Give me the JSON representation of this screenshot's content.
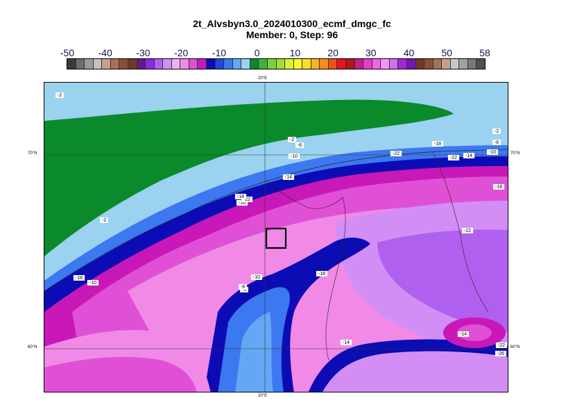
{
  "title": {
    "line1": "2t_Alvsbyn3.0_2024010300_ecmf_dmgc_fc",
    "line2": "Member: 0, Step: 96"
  },
  "colorbar": {
    "tick_labels": [
      "-50",
      "-40",
      "-30",
      "-20",
      "-10",
      "0",
      "10",
      "20",
      "30",
      "40",
      "50",
      "58"
    ],
    "colors": [
      "#3a3a3a",
      "#6e6e6e",
      "#9a9a9a",
      "#c2c2c2",
      "#c8a08a",
      "#a9705a",
      "#8c4e3a",
      "#6e3a24",
      "#5e1a8e",
      "#8a2be2",
      "#b060ee",
      "#d28ef5",
      "#e8b4f5",
      "#f08ae6",
      "#e050d6",
      "#c818b8",
      "#0c0cb4",
      "#1e46e6",
      "#3c78f0",
      "#64a8f5",
      "#9ad2f0",
      "#0a8a2a",
      "#3cb43c",
      "#78d23c",
      "#aadc28",
      "#dcf032",
      "#fafa28",
      "#fadc28",
      "#fab41e",
      "#f58c1e",
      "#f05014",
      "#e6141e",
      "#b4141e",
      "#c81e8c",
      "#e63cc8",
      "#f064e6",
      "#f096f5",
      "#d26ef0",
      "#a028d2",
      "#7814b4",
      "#6e3a24",
      "#8c4e3a",
      "#a9705a",
      "#c8a08a",
      "#c8c8c8",
      "#a0a0a0",
      "#787878",
      "#505050"
    ]
  },
  "map": {
    "lon_label_top": "20°E",
    "lon_label_bottom": "20°E",
    "lat_labels": [
      "70°N",
      "60°N"
    ],
    "contour_labels": [
      "-2",
      "-2",
      "-2",
      "-6",
      "-10",
      "-22",
      "-18",
      "-14",
      "-16",
      "-2",
      "-6",
      "-10",
      "-14",
      "-18",
      "-22",
      "-22",
      "-14",
      "-18",
      "-10",
      "-6",
      "-18",
      "-10",
      "-6",
      "-14",
      "-14",
      "-22",
      "-26",
      "-22"
    ]
  }
}
